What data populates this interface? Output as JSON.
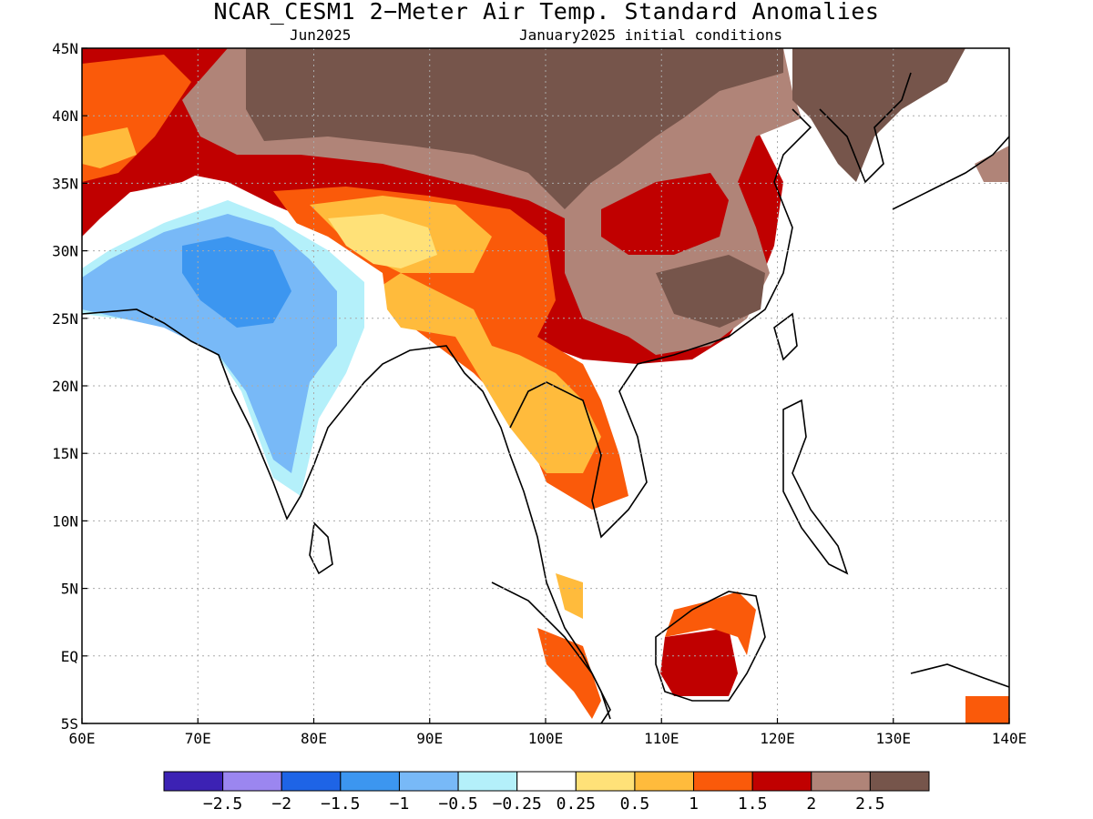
{
  "title": "NCAR_CESM1 2−Meter Air Temp. Standard Anomalies",
  "subtitle_left": "Jun2025",
  "subtitle_right": "January2025 initial conditions",
  "map": {
    "lon_range": [
      60,
      140
    ],
    "lat_range": [
      -5,
      45
    ],
    "lon_labels": [
      "60E",
      "70E",
      "80E",
      "90E",
      "100E",
      "110E",
      "120E",
      "130E",
      "140E"
    ],
    "lat_labels": [
      "45N",
      "40N",
      "35N",
      "30N",
      "25N",
      "20N",
      "15N",
      "10N",
      "5N",
      "EQ",
      "5S"
    ],
    "gridlines": "dotted",
    "land_color": "#ffffff",
    "ocean_color": "#ffffff"
  },
  "colorbar": {
    "colors": [
      "#3c22b4",
      "#9b86f0",
      "#1e64e6",
      "#3c96f0",
      "#78b9f7",
      "#b4f0fa",
      "#ffffff",
      "#ffe178",
      "#ffbb3c",
      "#fa5a0a",
      "#c00000",
      "#b08478",
      "#76554b"
    ],
    "labels": [
      "−2.5",
      "−2",
      "−1.5",
      "−1",
      "−0.5",
      "−0.25",
      "0.25",
      "0.5",
      "1",
      "1.5",
      "2",
      "2.5"
    ]
  }
}
